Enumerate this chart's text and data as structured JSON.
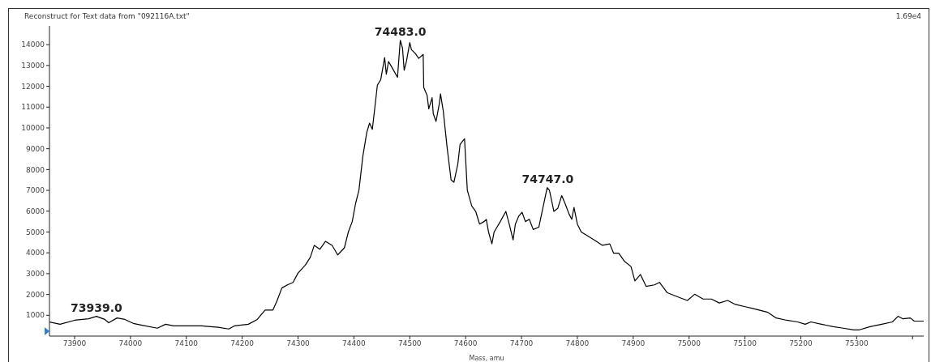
{
  "chart_data": {
    "type": "line",
    "title": "Reconstruct for Text data from \"092116A.txt\"",
    "xlabel": "Mass, amu",
    "color": "#000000",
    "x": [
      73855,
      73874,
      73900,
      73925,
      73939,
      73954,
      73961,
      73976,
      73990,
      74005,
      74019,
      74048,
      74063,
      74077,
      74099,
      74128,
      74157,
      74176,
      74186,
      74211,
      74227,
      74241,
      74255,
      74262,
      74271,
      74281,
      74291,
      74300,
      74313,
      74322,
      74329,
      74339,
      74349,
      74361,
      74371,
      74383,
      74390,
      74397,
      74403,
      74409,
      74416,
      74423,
      74428,
      74433,
      74442,
      74448,
      74455,
      74458,
      74462,
      74467,
      74478,
      74483,
      74487,
      74490,
      74494,
      74500,
      74503,
      74510,
      74516,
      74524,
      74525,
      74531,
      74534,
      74540,
      74542,
      74547,
      74553,
      74555,
      74560,
      74567,
      74574,
      74579,
      74586,
      74590,
      74598,
      74603,
      74611,
      74618,
      74625,
      74633,
      74637,
      74641,
      74647,
      74651,
      74662,
      74672,
      74678,
      74685,
      74689,
      74695,
      74701,
      74707,
      74714,
      74721,
      74731,
      74739,
      74746,
      74750,
      74758,
      74765,
      74772,
      74778,
      74785,
      74790,
      74794,
      74800,
      74807,
      74816,
      74830,
      74845,
      74858,
      74865,
      74874,
      74884,
      74896,
      74903,
      74913,
      74923,
      74938,
      74947,
      74961,
      74986,
      74997,
      75010,
      75025,
      75040,
      75054,
      75069,
      75083,
      75102,
      75114,
      75131,
      75141,
      75156,
      75175,
      75194,
      75208,
      75218,
      75237,
      75258,
      75276,
      75295,
      75305,
      75324,
      75345,
      75364,
      75374,
      75383,
      75396,
      75403,
      75420
    ],
    "values": [
      680,
      570,
      760,
      830,
      950,
      800,
      640,
      870,
      800,
      610,
      530,
      380,
      570,
      490,
      490,
      490,
      420,
      340,
      490,
      570,
      800,
      1250,
      1250,
      1670,
      2310,
      2460,
      2580,
      3030,
      3410,
      3790,
      4360,
      4170,
      4550,
      4360,
      3900,
      4240,
      5000,
      5500,
      6370,
      7010,
      8640,
      9780,
      10230,
      9930,
      12050,
      12320,
      13380,
      12580,
      13190,
      12960,
      12430,
      14210,
      13830,
      12770,
      13190,
      14100,
      13760,
      13570,
      13340,
      13530,
      11940,
      11560,
      10920,
      11450,
      10690,
      10310,
      11180,
      11640,
      10800,
      9020,
      7500,
      7390,
      8260,
      9210,
      9480,
      7010,
      6250,
      5990,
      5380,
      5500,
      5610,
      5000,
      4430,
      5000,
      5500,
      5990,
      5380,
      4620,
      5380,
      5760,
      5950,
      5500,
      5610,
      5120,
      5230,
      6250,
      7130,
      7010,
      5990,
      6140,
      6750,
      6370,
      5870,
      5610,
      6180,
      5380,
      5000,
      4850,
      4620,
      4360,
      4430,
      3980,
      3980,
      3600,
      3340,
      2650,
      2960,
      2390,
      2460,
      2580,
      2080,
      1820,
      1710,
      2010,
      1780,
      1780,
      1590,
      1710,
      1520,
      1400,
      1330,
      1210,
      1140,
      870,
      760,
      680,
      570,
      680,
      570,
      450,
      380,
      300,
      300,
      450,
      570,
      680,
      950,
      830,
      870,
      720,
      720
    ],
    "xlim": [
      73855,
      75420
    ],
    "ylim": [
      0,
      14900
    ],
    "xticks": [
      73900,
      74000,
      74100,
      74200,
      74300,
      74400,
      74500,
      74600,
      74700,
      74800,
      74900,
      75000,
      75100,
      75200,
      75300,
      {
        "value": 75400,
        "label": null
      }
    ],
    "yticks": [
      1000,
      2000,
      3000,
      4000,
      5000,
      6000,
      7000,
      8000,
      9000,
      10000,
      11000,
      12000,
      13000,
      14000
    ],
    "annotations": [
      "1.69e4",
      {
        "text": "73939.0",
        "x": 73939,
        "y": 950
      },
      {
        "text": "74483.0",
        "x": 74483,
        "y": 14210
      },
      {
        "text": "74747.0",
        "x": 74747,
        "y": 7130
      }
    ]
  }
}
